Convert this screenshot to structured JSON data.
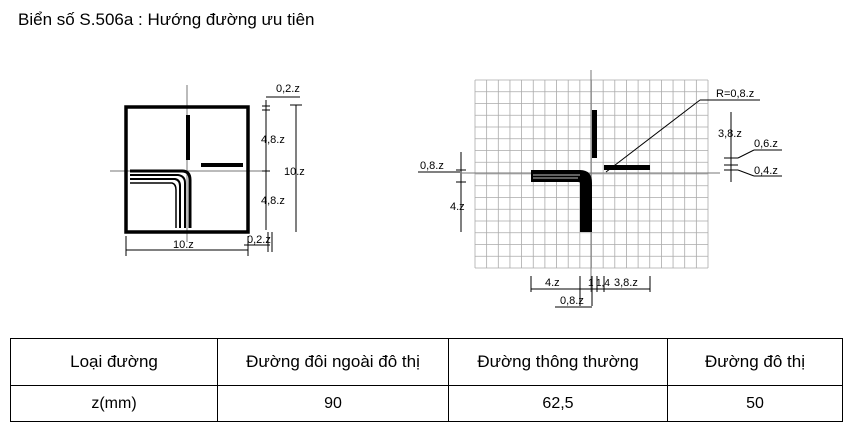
{
  "title": "Biển số S.506a : Hướng đường ưu tiên",
  "left_figure": {
    "dim_top_gap": "0,2.z",
    "dim_upper_right": "4,8.z",
    "dim_height": "10.z",
    "dim_lower_right": "4,8.z",
    "dim_width": "10.z",
    "dim_bottom_gap": "0,2.z"
  },
  "right_figure": {
    "radius_label": "R=0,8.z",
    "dim_arm_right": "3,8.z",
    "dim_gap_right": "0,6.z",
    "dim_stroke_right": "0,4.z",
    "dim_left_stroke": "0,8.z",
    "dim_left_arm": "4.z",
    "dim_bottom_left": "4.z",
    "dim_bottom_a": "1",
    "dim_bottom_b": "1,4",
    "dim_bottom_right": "3,8.z",
    "dim_bottom_stroke": "0,8.z"
  },
  "table": {
    "headers": [
      "Loại đường",
      "Đường đôi ngoài đô thị",
      "Đường thông thường",
      "Đường đô thị"
    ],
    "row": [
      "z(mm)",
      "90",
      "62,5",
      "50"
    ]
  }
}
